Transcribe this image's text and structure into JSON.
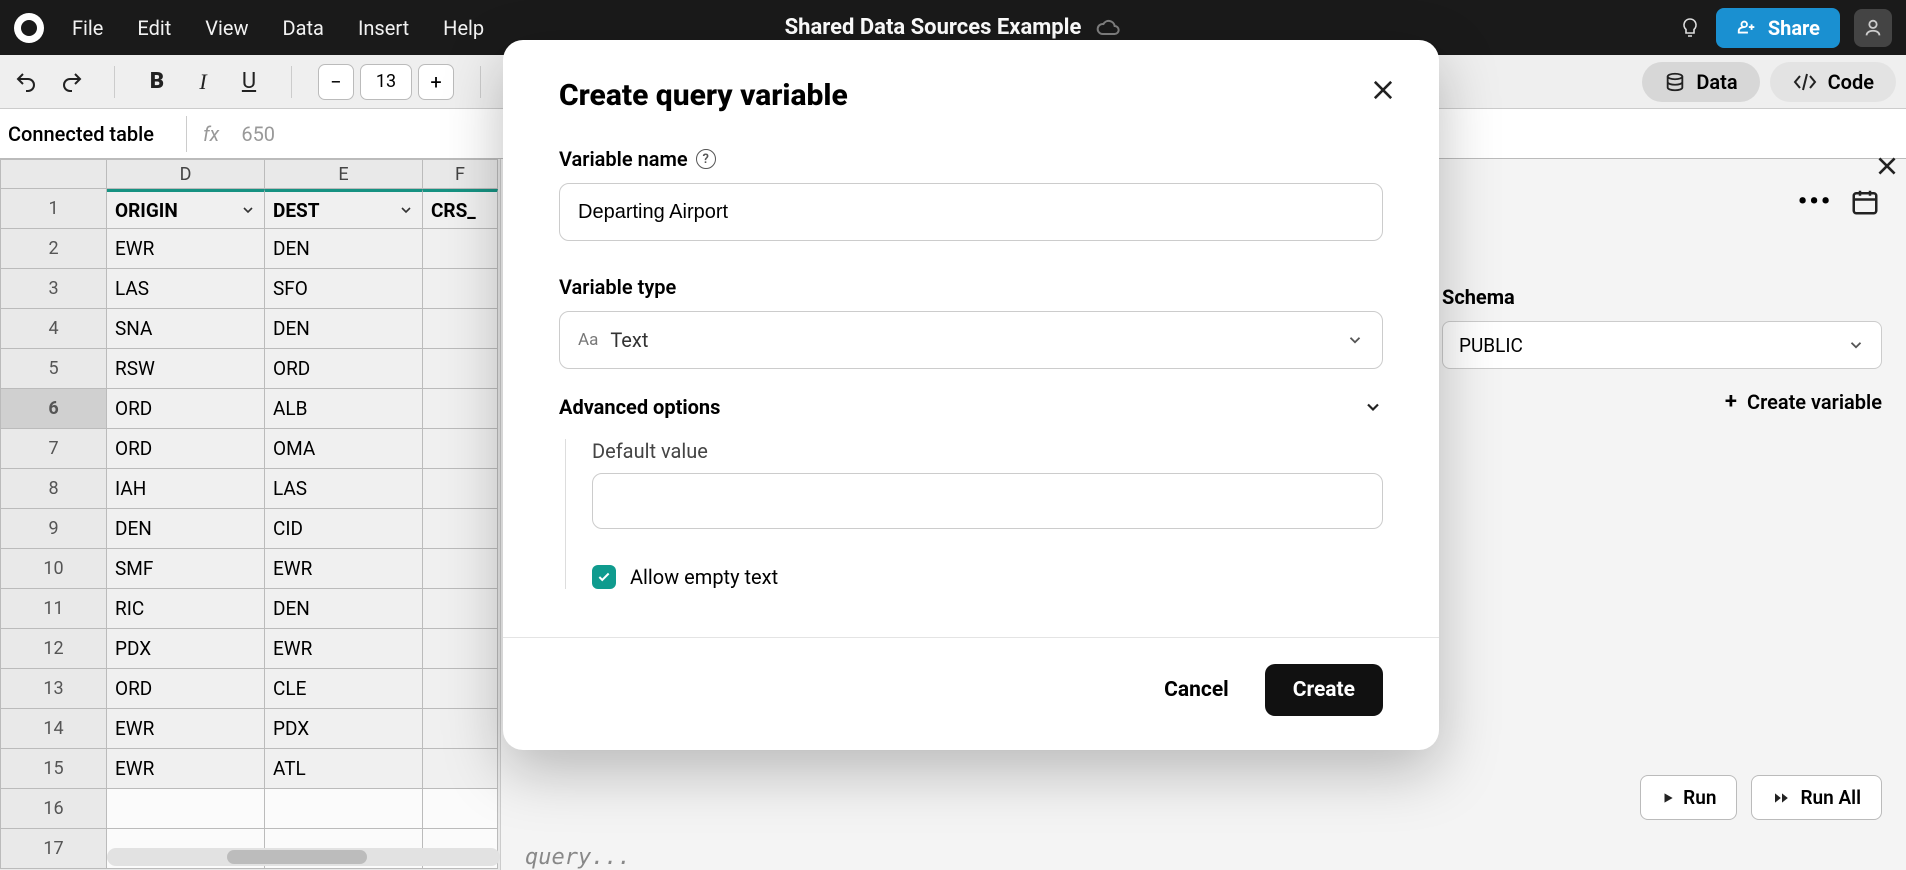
{
  "menubar": {
    "items": [
      "File",
      "Edit",
      "View",
      "Data",
      "Insert",
      "Help"
    ],
    "title": "Shared Data Sources Example",
    "share_label": "Share"
  },
  "toolbar": {
    "font_size": "13",
    "tabs": {
      "data": "Data",
      "code": "Code"
    }
  },
  "name_bar": {
    "label": "Connected table",
    "fx": "fx",
    "value": "650"
  },
  "sheet": {
    "columns": [
      {
        "letter": "D",
        "header": "ORIGIN"
      },
      {
        "letter": "E",
        "header": "DEST"
      },
      {
        "letter": "F",
        "header": "CRS_"
      }
    ],
    "rows": [
      {
        "n": "1",
        "d": "ORIGIN",
        "e": "DEST",
        "f": "CRS_"
      },
      {
        "n": "2",
        "d": "EWR",
        "e": "DEN",
        "f": ""
      },
      {
        "n": "3",
        "d": "LAS",
        "e": "SFO",
        "f": ""
      },
      {
        "n": "4",
        "d": "SNA",
        "e": "DEN",
        "f": ""
      },
      {
        "n": "5",
        "d": "RSW",
        "e": "ORD",
        "f": ""
      },
      {
        "n": "6",
        "d": "ORD",
        "e": "ALB",
        "f": ""
      },
      {
        "n": "7",
        "d": "ORD",
        "e": "OMA",
        "f": ""
      },
      {
        "n": "8",
        "d": "IAH",
        "e": "LAS",
        "f": ""
      },
      {
        "n": "9",
        "d": "DEN",
        "e": "CID",
        "f": ""
      },
      {
        "n": "10",
        "d": "SMF",
        "e": "EWR",
        "f": ""
      },
      {
        "n": "11",
        "d": "RIC",
        "e": "DEN",
        "f": ""
      },
      {
        "n": "12",
        "d": "PDX",
        "e": "EWR",
        "f": ""
      },
      {
        "n": "13",
        "d": "ORD",
        "e": "CLE",
        "f": ""
      },
      {
        "n": "14",
        "d": "EWR",
        "e": "PDX",
        "f": ""
      },
      {
        "n": "15",
        "d": "EWR",
        "e": "ATL",
        "f": ""
      },
      {
        "n": "16",
        "d": "",
        "e": "",
        "f": ""
      },
      {
        "n": "17",
        "d": "",
        "e": "",
        "f": ""
      }
    ],
    "selected_row": "6"
  },
  "right_panel": {
    "schema_label": "Schema",
    "schema_value": "PUBLIC",
    "create_variable_label": "Create variable",
    "run_label": "Run",
    "run_all_label": "Run All",
    "query_placeholder": "query..."
  },
  "modal": {
    "title": "Create query variable",
    "variable_name_label": "Variable name",
    "variable_name_value": "Departing Airport",
    "variable_type_label": "Variable type",
    "variable_type_value": "Text",
    "advanced_label": "Advanced options",
    "default_value_label": "Default value",
    "default_value": "",
    "allow_empty_label": "Allow empty text",
    "allow_empty_checked": true,
    "cancel_label": "Cancel",
    "create_label": "Create"
  },
  "colors": {
    "accent_teal": "#0f9b8e",
    "share_blue": "#1a90d1",
    "arrow_red": "#d62f2f"
  }
}
